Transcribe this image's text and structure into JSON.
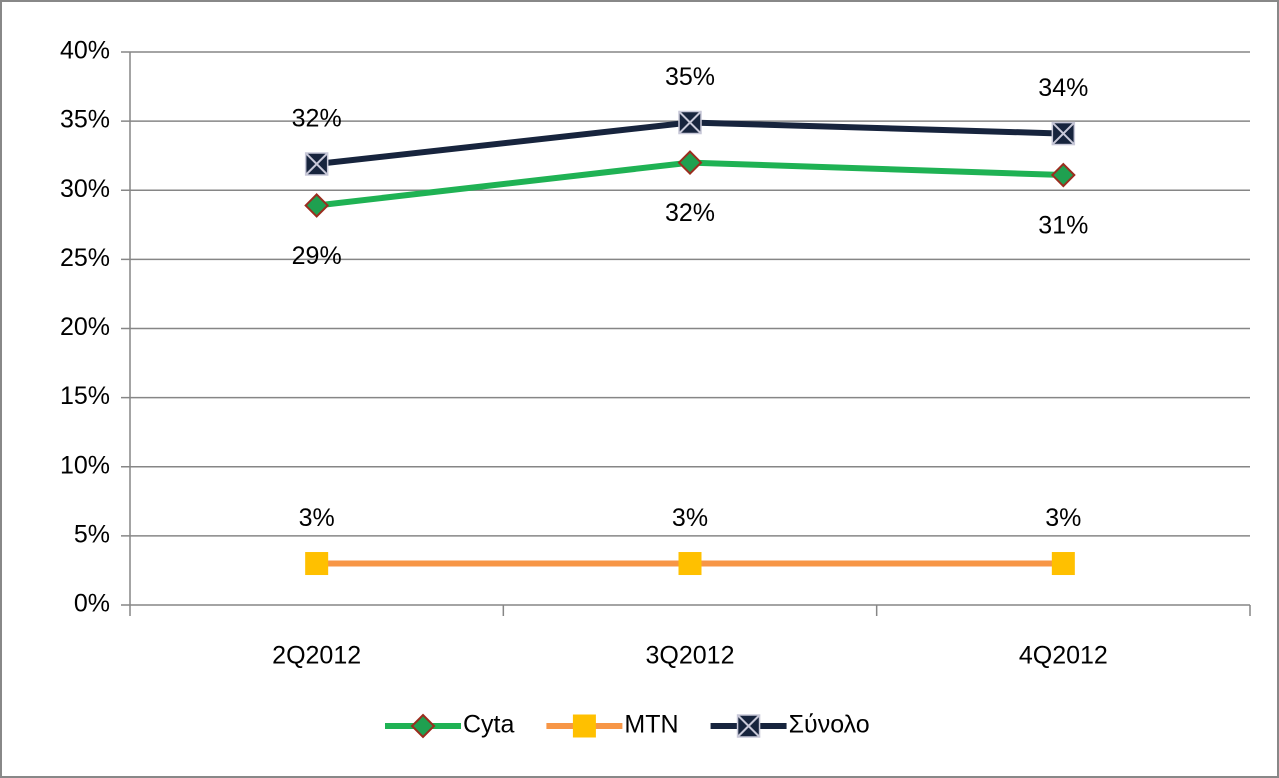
{
  "chart_data": {
    "type": "line",
    "categories": [
      "2Q2012",
      "3Q2012",
      "4Q2012"
    ],
    "series": [
      {
        "name": "Cyta",
        "color": "#1fb254",
        "marker": "diamond",
        "marker_color": "#1fa050",
        "marker_edge": "#9b2d1f",
        "label_position": "below",
        "values": [
          28.9,
          32.0,
          31.1
        ],
        "value_labels": [
          "29%",
          "32%",
          "31%"
        ]
      },
      {
        "name": "MTN",
        "color": "#f79646",
        "marker": "square",
        "marker_color": "#ffc000",
        "marker_edge": "#ffc000",
        "label_position": "above",
        "values": [
          3.0,
          3.0,
          3.0
        ],
        "value_labels": [
          "3%",
          "3%",
          "3%"
        ]
      },
      {
        "name": "Σύνολο",
        "color": "#17243d",
        "marker": "xbox",
        "marker_color": "#17243d",
        "marker_edge": "#c8c8d8",
        "label_position": "above",
        "values": [
          31.9,
          34.9,
          34.1
        ],
        "value_labels": [
          "32%",
          "35%",
          "34%"
        ]
      }
    ],
    "ylim": [
      0,
      40
    ],
    "yticks": [
      {
        "value": 0,
        "label": "0%"
      },
      {
        "value": 5,
        "label": "5%"
      },
      {
        "value": 10,
        "label": "10%"
      },
      {
        "value": 15,
        "label": "15%"
      },
      {
        "value": 20,
        "label": "20%"
      },
      {
        "value": 25,
        "label": "25%"
      },
      {
        "value": 30,
        "label": "30%"
      },
      {
        "value": 35,
        "label": "35%"
      },
      {
        "value": 40,
        "label": "40%"
      }
    ],
    "grid": true,
    "legend": "bottom"
  }
}
